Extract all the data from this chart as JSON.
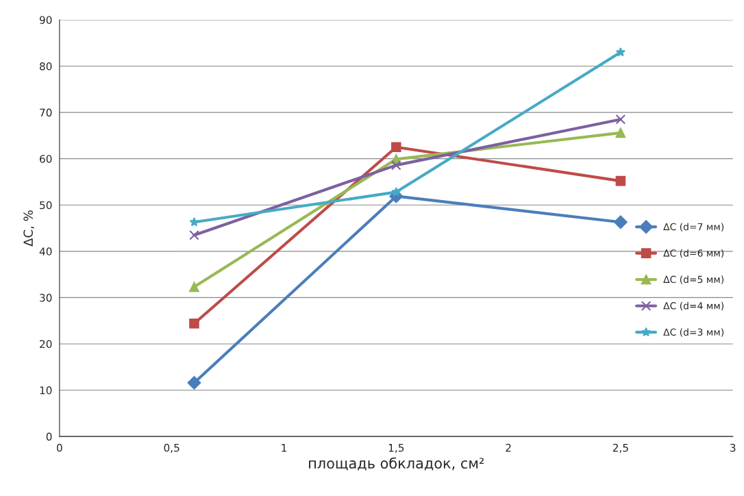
{
  "chart_data": {
    "type": "line",
    "xlabel": "площадь обкладок, см²",
    "ylabel": "ΔC, %",
    "x": [
      0.6,
      1.5,
      2.5
    ],
    "series": [
      {
        "name": "ΔC (d=7 мм)",
        "color": "#4a7ebb",
        "marker": "diamond",
        "values": [
          11.6,
          51.9,
          46.3
        ]
      },
      {
        "name": "ΔC (d=6 мм)",
        "color": "#be4b48",
        "marker": "square",
        "values": [
          24.4,
          62.5,
          55.2
        ]
      },
      {
        "name": "ΔC (d=5 мм)",
        "color": "#98b954",
        "marker": "triangle",
        "values": [
          32.3,
          59.9,
          65.6
        ]
      },
      {
        "name": "ΔC (d=4 мм)",
        "color": "#7d60a0",
        "marker": "cross",
        "values": [
          43.5,
          58.6,
          68.5
        ]
      },
      {
        "name": "ΔC (d=3 мм)",
        "color": "#46aac5",
        "marker": "star",
        "values": [
          46.3,
          52.8,
          83.0
        ]
      }
    ],
    "xlim": [
      0,
      3
    ],
    "xticks": [
      0,
      {
        "value": 0.5,
        "label": "0,5"
      },
      1,
      {
        "value": 1.5,
        "label": "1,5"
      },
      2,
      {
        "value": 2.5,
        "label": "2,5"
      },
      3
    ],
    "ylim": [
      0,
      90
    ],
    "yticks": [
      0,
      10,
      20,
      30,
      40,
      50,
      60,
      70,
      80,
      90
    ],
    "grid": "y",
    "legend": "center right",
    "line_style": "solid"
  }
}
